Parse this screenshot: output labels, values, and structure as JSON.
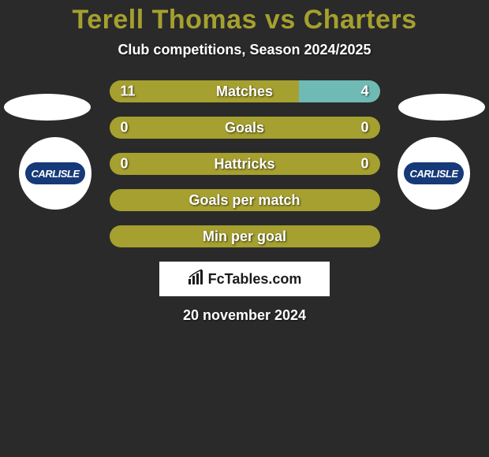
{
  "title": {
    "left_name": "Terell Thomas",
    "vs": "vs",
    "right_name": "Charters",
    "color": "#a5a02f"
  },
  "subtitle": "Club competitions, Season 2024/2025",
  "background_color": "#2a2a2a",
  "bar": {
    "track_color": "#a5a02f",
    "accent_color": "#6fbab5",
    "text_color": "#ffffff"
  },
  "club": {
    "label": "CARLISLE",
    "inner_bg": "#163a78"
  },
  "rows": [
    {
      "label": "Matches",
      "left_val": "11",
      "right_val": "4",
      "left_pct": 70,
      "right_pct": 30,
      "show_vals": true
    },
    {
      "label": "Goals",
      "left_val": "0",
      "right_val": "0",
      "left_pct": 0,
      "right_pct": 0,
      "show_vals": true
    },
    {
      "label": "Hattricks",
      "left_val": "0",
      "right_val": "0",
      "left_pct": 0,
      "right_pct": 0,
      "show_vals": true
    },
    {
      "label": "Goals per match",
      "left_val": "",
      "right_val": "",
      "left_pct": 0,
      "right_pct": 0,
      "show_vals": false
    },
    {
      "label": "Min per goal",
      "left_val": "",
      "right_val": "",
      "left_pct": 0,
      "right_pct": 0,
      "show_vals": false
    }
  ],
  "brand": {
    "prefix": "Fc",
    "suffix": "Tables.com",
    "icon_color": "#1a1a1a"
  },
  "date": "20 november 2024"
}
